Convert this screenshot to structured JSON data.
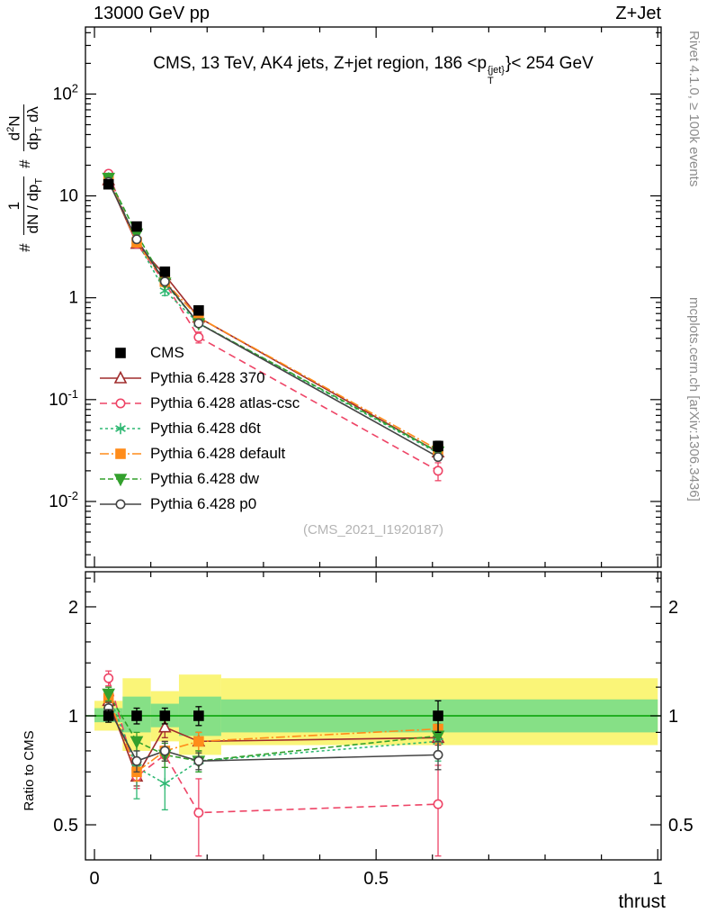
{
  "header": {
    "left": "13000 GeV pp",
    "right": "Z+Jet"
  },
  "panel_title": {
    "prefix": "CMS, 13 TeV, AK4 jets, Z+jet region, 186 <p",
    "sup": "{jet}",
    "sub": "T",
    "suffix": "}< 254 GeV"
  },
  "ylabel_parts": {
    "hash1": "#",
    "f1num": "1",
    "f1den_a": "dN / dp",
    "f1den_sub": "T",
    "hash2": "#",
    "f2num_a": "d",
    "f2num_sup": "2",
    "f2num_b": "N",
    "f2den_a": "dp",
    "f2den_sub": "T",
    "f2den_b": " dλ"
  },
  "ratio_ylabel": "Ratio to CMS",
  "xlabel": "thrust",
  "watermark": "(CMS_2021_I1920187)",
  "side_notes": {
    "top": "Rivet 4.1.0, ≥ 100k events",
    "bottom": "mcplots.cern.ch [arXiv:1306.3436]"
  },
  "chart_data": {
    "type": "line",
    "title": "CMS, 13 TeV, AK4 jets, Z+jet region, 186 <pT{jet}< 254 GeV",
    "xlabel": "thrust",
    "ylabel_text": "# 1/(dN/dpT) # d²N/(dpT dλ)",
    "ratio_label": "Ratio to CMS",
    "legend_position": "middle-left",
    "grid": false,
    "xlim": [
      -0.016,
      1.006
    ],
    "main_ylim": [
      0.00226,
      455
    ],
    "main_yscale": "log",
    "ratio_ylim": [
      0.4,
      2.5
    ],
    "ratio_yscale": "log",
    "x": [
      0.025,
      0.075,
      0.125,
      0.185,
      0.61
    ],
    "x_major_ticks": [
      {
        "v": 0,
        "label": "0"
      },
      {
        "v": 0.5,
        "label": "0.5"
      },
      {
        "v": 1,
        "label": "1"
      }
    ],
    "x_minor_step": 0.1,
    "main_y_ticks": [
      {
        "v": 100,
        "base": "10",
        "exp": "2"
      },
      {
        "v": 10,
        "base": "10",
        "exp": ""
      },
      {
        "v": 1,
        "base": "1",
        "exp": ""
      },
      {
        "v": 0.1,
        "base": "10",
        "exp": "-1"
      },
      {
        "v": 0.01,
        "base": "10",
        "exp": "-2"
      }
    ],
    "ratio_y_ticks": [
      {
        "v": 2,
        "label": "2"
      },
      {
        "v": 1,
        "label": "1"
      },
      {
        "v": 0.5,
        "label": "0.5"
      }
    ],
    "ratio_y_minor": [
      0.6,
      0.7,
      0.8,
      0.9,
      1.2,
      1.4,
      1.6,
      1.8,
      2.2,
      2.4
    ],
    "reference_line": {
      "v": 1,
      "color": "#00a000"
    },
    "band_colors": {
      "yellow": "#faf578",
      "green": "#86e086"
    },
    "bands": [
      {
        "x0": 0.0,
        "x1": 0.05,
        "yellow": [
          0.91,
          1.1
        ],
        "green": [
          0.96,
          1.05
        ]
      },
      {
        "x0": 0.05,
        "x1": 0.1,
        "yellow": [
          0.8,
          1.27
        ],
        "green": [
          0.9,
          1.13
        ]
      },
      {
        "x0": 0.1,
        "x1": 0.15,
        "yellow": [
          0.85,
          1.17
        ],
        "green": [
          0.93,
          1.08
        ]
      },
      {
        "x0": 0.15,
        "x1": 0.225,
        "yellow": [
          0.78,
          1.3
        ],
        "green": [
          0.88,
          1.13
        ]
      },
      {
        "x0": 0.225,
        "x1": 1.0,
        "yellow": [
          0.83,
          1.27
        ],
        "green": [
          0.9,
          1.11
        ]
      }
    ],
    "series": [
      {
        "key": "cms",
        "label": "CMS",
        "color": "#000000",
        "marker": "square",
        "filled": true,
        "line": "none",
        "dash": "",
        "y": [
          13,
          5.0,
          1.8,
          0.75,
          0.035
        ],
        "yerr": [
          0.6,
          0.25,
          0.09,
          0.05,
          0.004
        ],
        "ratio": [
          1,
          1,
          1,
          1,
          1
        ],
        "ratio_err": [
          0.04,
          0.05,
          0.05,
          0.06,
          0.1
        ]
      },
      {
        "key": "pythia-370",
        "label": "Pythia 6.428 370",
        "color": "#a02c2c",
        "marker": "triangle-up",
        "filled": false,
        "line": "solid",
        "dash": "",
        "y": [
          14.3,
          3.4,
          1.67,
          0.64,
          0.0305
        ],
        "yerr": [
          0.4,
          0.12,
          0.06,
          0.03,
          0.002
        ],
        "ratio": [
          1.1,
          0.68,
          0.93,
          0.85,
          0.87
        ],
        "ratio_err": [
          0.05,
          0.04,
          0.06,
          0.05,
          0.04
        ]
      },
      {
        "key": "pythia-atlas-csc",
        "label": "Pythia 6.428 atlas-csc",
        "color": "#ee4466",
        "marker": "circle",
        "filled": false,
        "line": "dashed",
        "dash": "8,5",
        "y": [
          16.5,
          3.4,
          1.4,
          0.41,
          0.02
        ],
        "yerr": [
          0.5,
          0.12,
          0.05,
          0.05,
          0.004
        ],
        "ratio": [
          1.27,
          0.68,
          0.78,
          0.54,
          0.57
        ],
        "ratio_err": [
          0.06,
          0.05,
          0.06,
          0.13,
          0.16
        ]
      },
      {
        "key": "pythia-d6t",
        "label": "Pythia 6.428 d6t",
        "color": "#2eb872",
        "marker": "asterisk",
        "filled": false,
        "line": "dashed",
        "dash": "3,3",
        "y": [
          15.0,
          3.6,
          1.17,
          0.56,
          0.0298
        ],
        "yerr": [
          0.4,
          0.3,
          0.12,
          0.03,
          0.003
        ],
        "ratio": [
          1.15,
          0.72,
          0.65,
          0.75,
          0.85
        ],
        "ratio_err": [
          0.05,
          0.13,
          0.1,
          0.05,
          0.1
        ]
      },
      {
        "key": "pythia-default",
        "label": "Pythia 6.428 default",
        "color": "#ff8c1a",
        "marker": "square",
        "filled": true,
        "line": "dashdot",
        "dash": "10,3,2,3",
        "y": [
          14.6,
          3.5,
          1.44,
          0.64,
          0.0322
        ],
        "yerr": [
          0.4,
          0.12,
          0.05,
          0.03,
          0.003
        ],
        "ratio": [
          1.12,
          0.7,
          0.8,
          0.85,
          0.92
        ],
        "ratio_err": [
          0.05,
          0.04,
          0.05,
          0.05,
          0.08
        ]
      },
      {
        "key": "pythia-dw",
        "label": "Pythia 6.428 dw",
        "color": "#33a02c",
        "marker": "triangle-down",
        "filled": true,
        "line": "dashed",
        "dash": "6,3",
        "y": [
          15.0,
          4.25,
          1.4,
          0.56,
          0.0308
        ],
        "yerr": [
          0.4,
          0.15,
          0.06,
          0.03,
          0.003
        ],
        "ratio": [
          1.15,
          0.85,
          0.78,
          0.75,
          0.88
        ],
        "ratio_err": [
          0.05,
          0.05,
          0.06,
          0.05,
          0.09
        ]
      },
      {
        "key": "pythia-p0",
        "label": "Pythia 6.428 p0",
        "color": "#444444",
        "marker": "circle",
        "filled": false,
        "line": "solid",
        "dash": "",
        "y": [
          13.7,
          3.75,
          1.44,
          0.56,
          0.0273
        ],
        "yerr": [
          0.35,
          0.12,
          0.05,
          0.03,
          0.002
        ],
        "ratio": [
          1.05,
          0.75,
          0.8,
          0.75,
          0.78
        ],
        "ratio_err": [
          0.04,
          0.05,
          0.05,
          0.04,
          0.07
        ]
      }
    ]
  }
}
